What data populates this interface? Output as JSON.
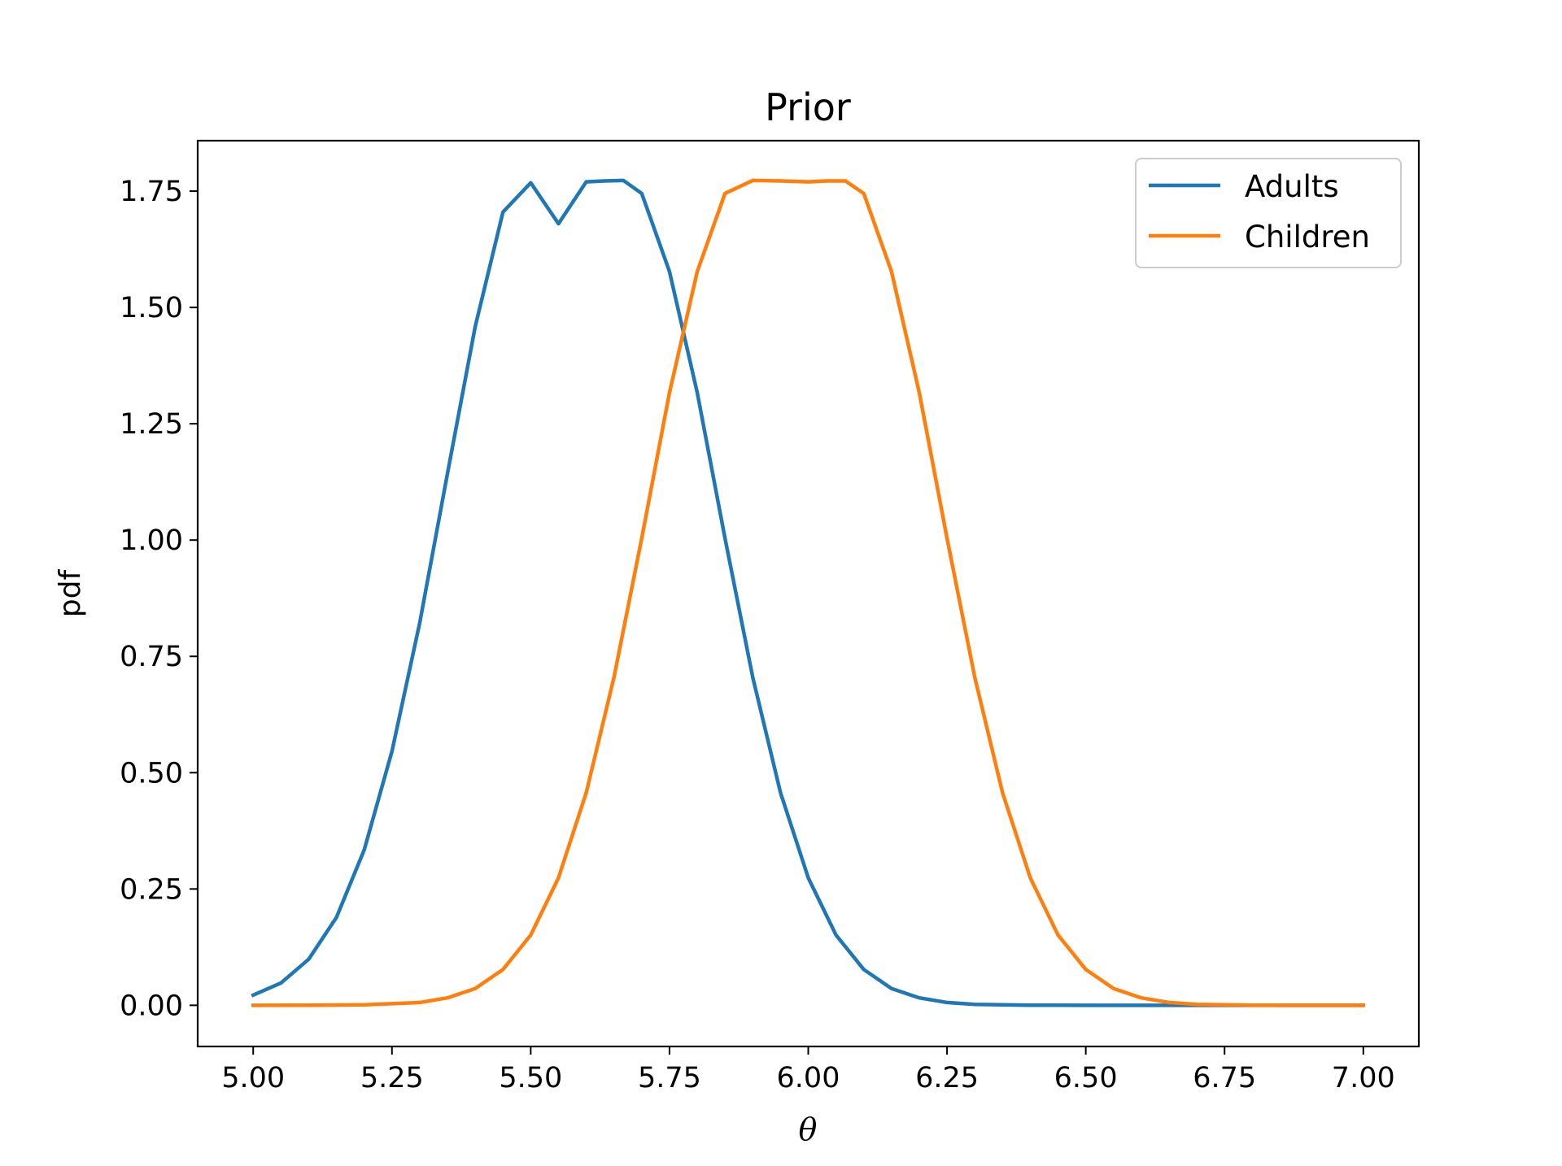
{
  "chart_data": {
    "type": "line",
    "title": "Prior",
    "xlabel": "θ",
    "ylabel": "pdf",
    "xlim": [
      4.9,
      7.1
    ],
    "ylim": [
      -0.0885,
      1.8585
    ],
    "xticks": [
      5.0,
      5.25,
      5.5,
      5.75,
      6.0,
      6.25,
      6.5,
      6.75,
      7.0
    ],
    "xtick_labels": [
      "5.00",
      "5.25",
      "5.50",
      "5.75",
      "6.00",
      "6.25",
      "6.50",
      "6.75",
      "7.00"
    ],
    "yticks": [
      0.0,
      0.25,
      0.5,
      0.75,
      1.0,
      1.25,
      1.5,
      1.75
    ],
    "ytick_labels": [
      "0.00",
      "0.25",
      "0.50",
      "0.75",
      "1.00",
      "1.25",
      "1.50",
      "1.75"
    ],
    "grid": false,
    "legend_position": "top-right",
    "series": [
      {
        "name": "Adults",
        "color": "#1f77b4",
        "x": [
          5.0,
          5.05,
          5.1,
          5.15,
          5.2,
          5.25,
          5.3,
          5.35,
          5.4,
          5.45,
          5.5,
          5.55,
          5.6,
          5.633,
          5.667,
          5.7,
          5.75,
          5.8,
          5.85,
          5.9,
          5.95,
          6.0,
          6.05,
          6.1,
          6.15,
          6.2,
          6.25,
          6.3,
          6.35,
          6.4,
          6.45,
          6.5,
          6.6,
          6.7,
          6.8,
          6.9,
          7.0
        ],
        "y": [
          0.022,
          0.048,
          0.099,
          0.189,
          0.334,
          0.546,
          0.822,
          1.143,
          1.459,
          1.705,
          1.768,
          1.68,
          1.77,
          1.772,
          1.773,
          1.745,
          1.577,
          1.317,
          1.004,
          0.705,
          0.457,
          0.274,
          0.151,
          0.077,
          0.036,
          0.016,
          0.006,
          0.002,
          0.001,
          0.0003,
          0.0001,
          0.0,
          0.0,
          0.0,
          0.0,
          0.0,
          0.0
        ]
      },
      {
        "name": "Children",
        "color": "#ff7f0e",
        "x": [
          5.0,
          5.1,
          5.2,
          5.3,
          5.35,
          5.4,
          5.45,
          5.5,
          5.55,
          5.6,
          5.65,
          5.7,
          5.75,
          5.8,
          5.85,
          5.9,
          5.95,
          6.0,
          6.033,
          6.067,
          6.1,
          6.15,
          6.2,
          6.25,
          6.3,
          6.35,
          6.4,
          6.45,
          6.5,
          6.55,
          6.6,
          6.65,
          6.7,
          6.75,
          6.8,
          6.9,
          7.0
        ],
        "y": [
          0.0,
          0.0001,
          0.001,
          0.006,
          0.016,
          0.036,
          0.077,
          0.151,
          0.274,
          0.457,
          0.705,
          1.004,
          1.317,
          1.577,
          1.745,
          1.773,
          1.772,
          1.77,
          1.772,
          1.772,
          1.745,
          1.577,
          1.317,
          1.004,
          0.705,
          0.457,
          0.274,
          0.151,
          0.077,
          0.036,
          0.016,
          0.006,
          0.002,
          0.001,
          0.0003,
          0.0,
          0.0
        ]
      }
    ]
  }
}
